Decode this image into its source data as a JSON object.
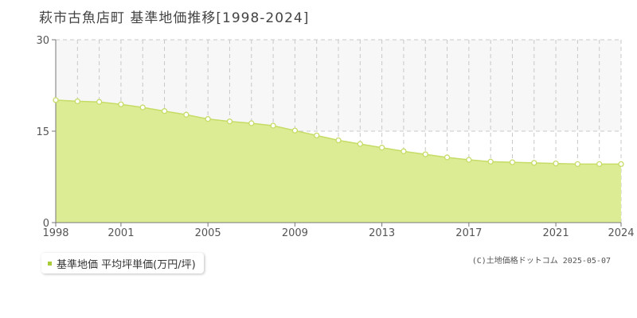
{
  "title": "萩市古魚店町 基準地価推移[1998-2024]",
  "legend_label": "基準地価 平均坪単価(万円/坪)",
  "copyright": "(C)土地価格ドットコム 2025-05-07",
  "colors": {
    "fill": "#dcec95",
    "line": "#c5dc66",
    "marker_fill": "#ffffff",
    "marker_stroke": "#c5dc66",
    "legend_swatch": "#a8cc38",
    "grid": "#c8c8c8",
    "axis": "#777777",
    "tick_text": "#555555",
    "band": "#f7f7f7"
  },
  "chart_data": {
    "type": "area",
    "x": [
      1998,
      1999,
      2000,
      2001,
      2002,
      2003,
      2004,
      2005,
      2006,
      2007,
      2008,
      2009,
      2010,
      2011,
      2012,
      2013,
      2014,
      2015,
      2016,
      2017,
      2018,
      2019,
      2020,
      2021,
      2022,
      2023,
      2024
    ],
    "series": [
      {
        "name": "基準地価 平均坪単価(万円/坪)",
        "values": [
          20.1,
          19.9,
          19.8,
          19.4,
          18.9,
          18.3,
          17.7,
          17.0,
          16.6,
          16.3,
          15.9,
          15.1,
          14.3,
          13.5,
          12.9,
          12.3,
          11.7,
          11.2,
          10.7,
          10.3,
          10.0,
          9.9,
          9.8,
          9.7,
          9.6,
          9.6,
          9.6
        ]
      }
    ],
    "xticks": [
      "1998",
      "2001",
      "2005",
      "2009",
      "2013",
      "2017",
      "2021",
      "2024"
    ],
    "yticks": [
      "0",
      "15",
      "30"
    ],
    "ylim": [
      0,
      30
    ],
    "xlim": [
      1998,
      2024
    ],
    "grid": true,
    "title": "萩市古魚店町 基準地価推移[1998-2024]",
    "xlabel": "",
    "ylabel": "",
    "legend_position": "bottom-left"
  }
}
